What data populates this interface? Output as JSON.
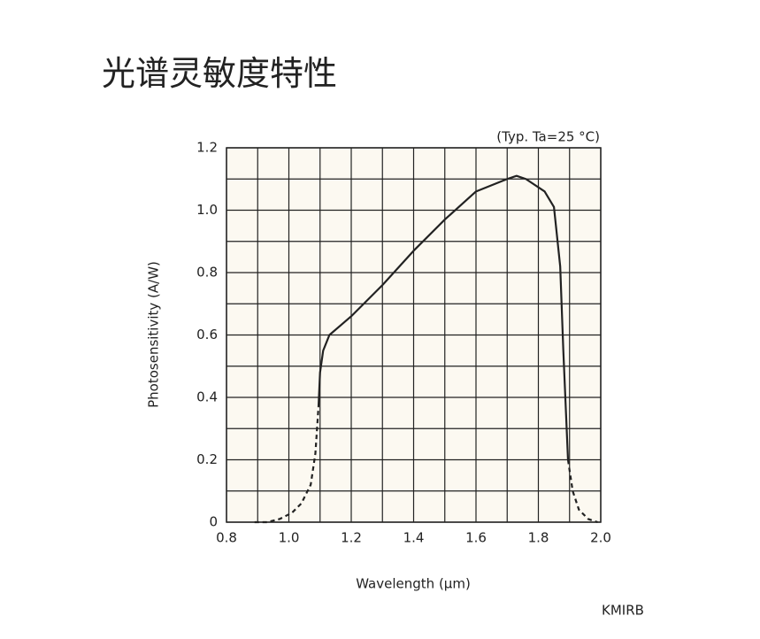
{
  "heading": "光谱灵敏度特性",
  "chart_data": {
    "type": "line",
    "annotation": "(Typ. Ta=25 °C)",
    "xlabel": "Wavelength (μm)",
    "ylabel": "Photosensitivity (A/W)",
    "code": "KMIRB",
    "background": "#fcf9f1",
    "color": "#222222",
    "grid": true,
    "xlim": [
      0.8,
      2.0
    ],
    "ylim": [
      0,
      1.2
    ],
    "xticks": [
      0.8,
      {
        "value": 1,
        "label": "1.0"
      },
      1.2,
      1.4,
      1.6,
      1.8,
      {
        "value": 2,
        "label": "2.0"
      }
    ],
    "yticks": [
      0,
      0.2,
      0.4,
      0.6,
      0.8,
      {
        "value": 1,
        "label": "1.0"
      },
      1.2
    ],
    "xminorticks": [
      0.9,
      1.1,
      1.3,
      1.5,
      1.7,
      1.9
    ],
    "yminorticks": [
      0.1,
      0.3,
      0.5,
      0.7,
      0.9,
      1.1
    ],
    "series": [
      {
        "style": "dashed",
        "x": [
          0.89,
          0.93,
          0.97,
          1.01,
          1.04,
          1.07,
          1.085,
          1.095
        ],
        "values": [
          0,
          0,
          0.01,
          0.03,
          0.06,
          0.12,
          0.22,
          0.37
        ]
      },
      {
        "style": "solid",
        "x": [
          1.095,
          1.1,
          1.11,
          1.13,
          1.2,
          1.3,
          1.4,
          1.5,
          1.6,
          1.7,
          1.73,
          1.76,
          1.82,
          1.85,
          1.87,
          1.88,
          1.895
        ],
        "values": [
          0.37,
          0.48,
          0.55,
          0.6,
          0.66,
          0.76,
          0.87,
          0.97,
          1.06,
          1.1,
          1.11,
          1.1,
          1.06,
          1.01,
          0.82,
          0.55,
          0.2
        ]
      },
      {
        "style": "dashed",
        "x": [
          1.895,
          1.91,
          1.93,
          1.96,
          1.99
        ],
        "values": [
          0.2,
          0.1,
          0.04,
          0.01,
          0
        ]
      }
    ]
  }
}
